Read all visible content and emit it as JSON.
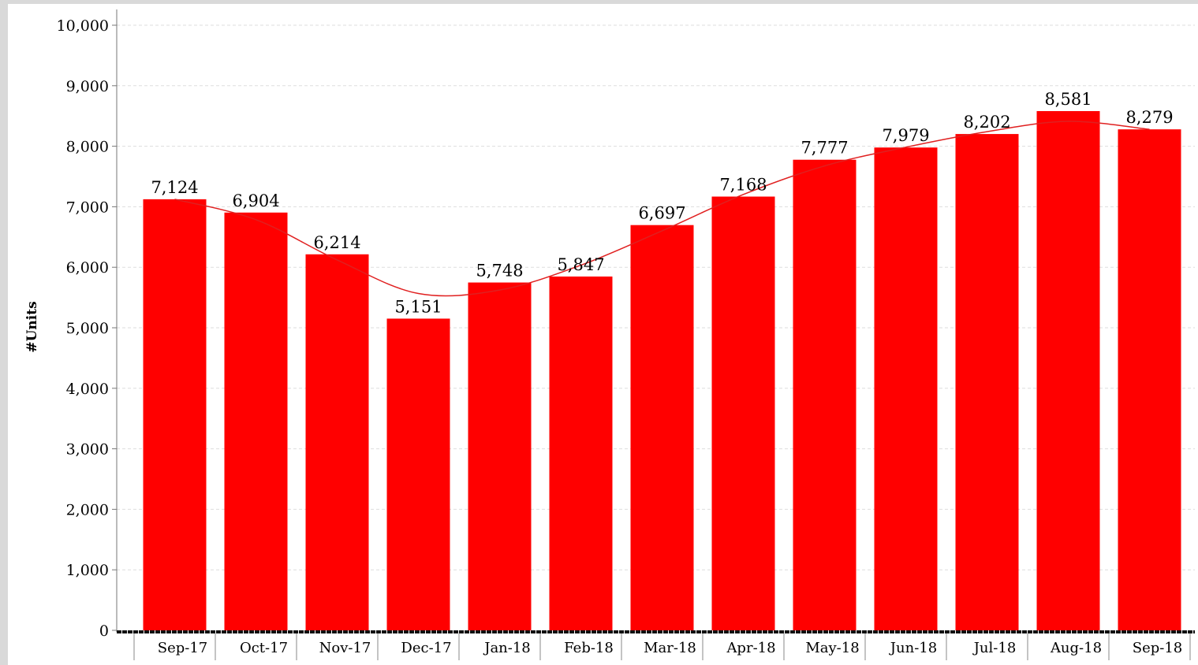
{
  "chart_data": {
    "type": "bar",
    "title": "",
    "xlabel": "",
    "ylabel": "#Units",
    "ylim": [
      0,
      10000
    ],
    "yticks": [
      0,
      1000,
      2000,
      3000,
      4000,
      5000,
      6000,
      7000,
      8000,
      9000,
      10000
    ],
    "ytick_labels": [
      "0",
      "1,000",
      "2,000",
      "3,000",
      "4,000",
      "5,000",
      "6,000",
      "7,000",
      "8,000",
      "9,000",
      "10,000"
    ],
    "grid": true,
    "categories": [
      "Sep-17",
      "Oct-17",
      "Nov-17",
      "Dec-17",
      "Jan-18",
      "Feb-18",
      "Mar-18",
      "Apr-18",
      "May-18",
      "Jun-18",
      "Jul-18",
      "Aug-18",
      "Sep-18"
    ],
    "values": [
      7124,
      6904,
      6214,
      5151,
      5748,
      5847,
      6697,
      7168,
      7777,
      7979,
      8202,
      8581,
      8279
    ],
    "value_labels": [
      "7,124",
      "6,904",
      "6,214",
      "5,151",
      "5,748",
      "5,847",
      "6,697",
      "7,168",
      "7,777",
      "7,979",
      "8,202",
      "8,581",
      "8,279"
    ],
    "trendline": true,
    "colors": {
      "bar": "#ff0000",
      "trend": "#e02020",
      "plot_background": "#ffffff",
      "outer_background": "#d9d9d9",
      "grid": "#dddddd"
    }
  }
}
